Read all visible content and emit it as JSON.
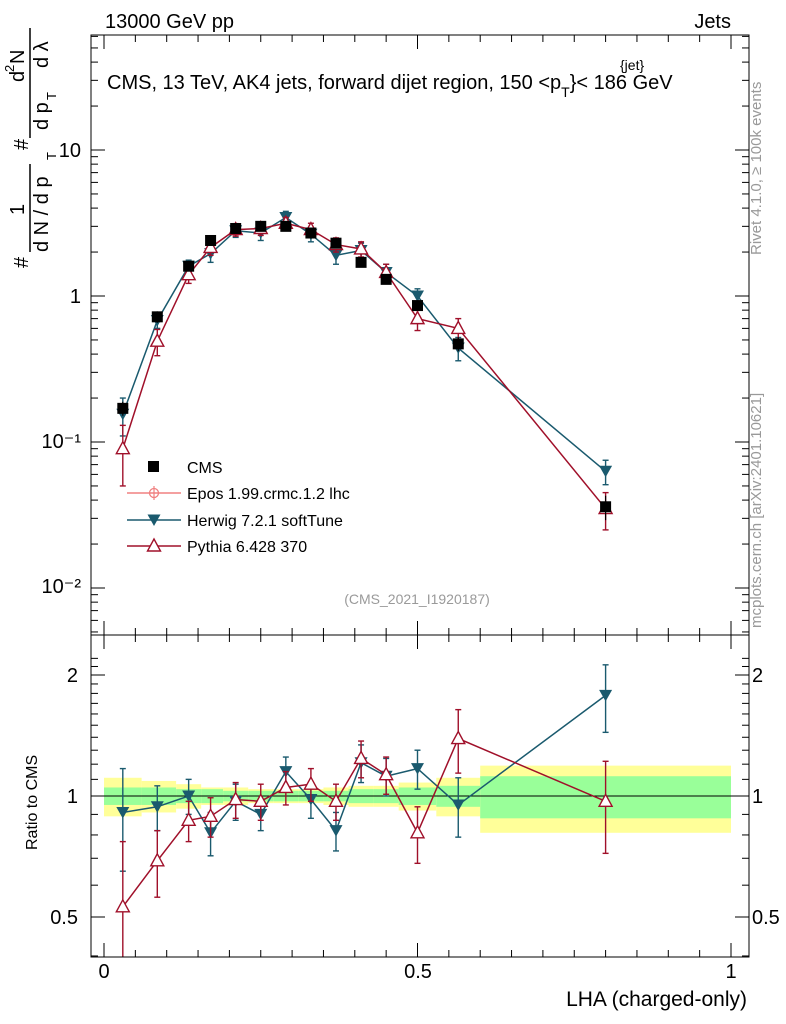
{
  "header": {
    "energy_label": "13000 GeV pp",
    "category": "Jets",
    "title": "CMS, 13 TeV, AK4 jets, forward dijet region, 150 <p",
    "title_sup": "{jet}",
    "title_sub": "T",
    "title_end": "}< 186 GeV",
    "side_rivet": "Rivet 4.1.0, ≥ 100k events",
    "side_mcplots": "mcplots.cern.ch [arXiv:2401.10621]",
    "analysis_id": "(CMS_2021_I1920187)"
  },
  "axes": {
    "xlabel": "LHA (charged-only)",
    "ylabel_ratio": "Ratio to CMS",
    "ylabel_main": "1/N dN/dp_T dλ",
    "x_ticks": [
      0,
      0.5,
      1
    ],
    "x_tick_labels": [
      "0",
      "0.5",
      "1"
    ],
    "ratio_ticks": [
      0.5,
      1,
      2
    ],
    "ratio_tick_labels": [
      "0.5",
      "1",
      "2"
    ]
  },
  "legend": {
    "cms": "CMS",
    "epos": "Epos 1.99.crmc.1.2 lhc",
    "herwig": "Herwig 7.2.1 softTune",
    "pythia": "Pythia 6.428 370"
  },
  "colors": {
    "cms": "#000000",
    "epos": "#f08080",
    "herwig": "#1a5a6e",
    "pythia": "#a0102a",
    "band_inner": "#99ff99",
    "band_outer": "#ffff99"
  },
  "chart_data": {
    "type": "line",
    "x_scale": "linear",
    "y_scale": "log",
    "xlim": [
      -0.03,
      1.03
    ],
    "ylim": [
      0.005,
      80
    ],
    "ratio_ylim": [
      0.35,
      2.3
    ],
    "main_ytick_labels": [
      "10⁻²",
      "10⁻¹",
      "1",
      "10"
    ],
    "cms": {
      "name": "CMS",
      "bins": [
        [
          0.0,
          0.06
        ],
        [
          0.06,
          0.115
        ],
        [
          0.115,
          0.155
        ],
        [
          0.155,
          0.19
        ],
        [
          0.19,
          0.23
        ],
        [
          0.23,
          0.27
        ],
        [
          0.27,
          0.31
        ],
        [
          0.31,
          0.35
        ],
        [
          0.35,
          0.39
        ],
        [
          0.39,
          0.43
        ],
        [
          0.43,
          0.47
        ],
        [
          0.47,
          0.53
        ],
        [
          0.53,
          0.6
        ],
        [
          0.6,
          1.0
        ]
      ],
      "x": [
        0.03,
        0.085,
        0.135,
        0.17,
        0.21,
        0.25,
        0.29,
        0.33,
        0.37,
        0.41,
        0.45,
        0.5,
        0.565,
        0.8
      ],
      "y": [
        0.17,
        0.72,
        1.6,
        2.4,
        2.9,
        3.0,
        3.0,
        2.7,
        2.3,
        1.7,
        1.3,
        0.86,
        0.47,
        0.036
      ],
      "stat_rel": [
        0.05,
        0.05,
        0.04,
        0.04,
        0.03,
        0.03,
        0.03,
        0.03,
        0.03,
        0.04,
        0.04,
        0.05,
        0.06,
        0.12
      ],
      "tot_rel": [
        0.11,
        0.09,
        0.07,
        0.05,
        0.05,
        0.04,
        0.04,
        0.04,
        0.05,
        0.06,
        0.06,
        0.08,
        0.11,
        0.19
      ]
    },
    "series": [
      {
        "name": "Herwig 7.2.1 softTune",
        "key": "herwig",
        "marker": "triangle-down-filled",
        "x": [
          0.03,
          0.085,
          0.135,
          0.17,
          0.21,
          0.25,
          0.29,
          0.33,
          0.37,
          0.41,
          0.45,
          0.5,
          0.565,
          0.8
        ],
        "y": [
          0.155,
          0.68,
          1.6,
          1.95,
          2.8,
          2.7,
          3.45,
          2.65,
          1.9,
          2.05,
          1.45,
          1.0,
          0.44,
          0.063
        ],
        "err": [
          0.045,
          0.08,
          0.16,
          0.25,
          0.28,
          0.3,
          0.35,
          0.3,
          0.25,
          0.25,
          0.2,
          0.12,
          0.08,
          0.012
        ],
        "ratio": [
          0.91,
          0.94,
          1.0,
          0.81,
          0.97,
          0.9,
          1.15,
          0.98,
          0.82,
          1.21,
          1.12,
          1.17,
          0.95,
          1.78
        ],
        "ratio_err": [
          0.26,
          0.12,
          0.1,
          0.1,
          0.1,
          0.08,
          0.1,
          0.1,
          0.09,
          0.13,
          0.12,
          0.13,
          0.16,
          0.34
        ]
      },
      {
        "name": "Pythia 6.428 370",
        "key": "pythia",
        "marker": "triangle-up-open",
        "x": [
          0.03,
          0.085,
          0.135,
          0.17,
          0.21,
          0.25,
          0.29,
          0.33,
          0.37,
          0.41,
          0.45,
          0.5,
          0.565,
          0.8
        ],
        "y": [
          0.09,
          0.49,
          1.4,
          2.15,
          2.85,
          2.9,
          3.15,
          2.85,
          2.25,
          2.1,
          1.45,
          0.7,
          0.6,
          0.035
        ],
        "err": [
          0.04,
          0.1,
          0.18,
          0.25,
          0.28,
          0.3,
          0.3,
          0.3,
          0.25,
          0.25,
          0.2,
          0.12,
          0.1,
          0.01
        ],
        "ratio": [
          0.53,
          0.69,
          0.87,
          0.89,
          0.98,
          0.97,
          1.05,
          1.07,
          0.97,
          1.24,
          1.13,
          0.81,
          1.39,
          0.97
        ],
        "ratio_err": [
          0.24,
          0.13,
          0.1,
          0.1,
          0.1,
          0.1,
          0.1,
          0.1,
          0.1,
          0.13,
          0.12,
          0.13,
          0.25,
          0.25
        ]
      }
    ]
  }
}
